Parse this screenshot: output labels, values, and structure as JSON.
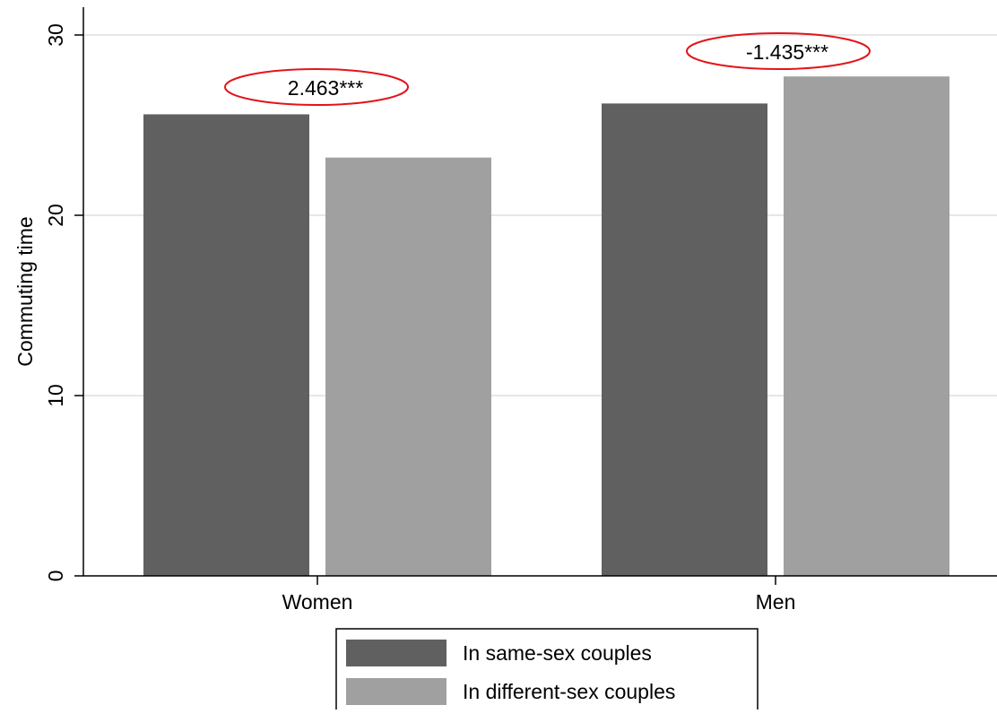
{
  "chart_data": {
    "type": "bar",
    "title": "",
    "xlabel": "",
    "ylabel": "Commuting time",
    "ylim": [
      0,
      31.5
    ],
    "yticks": [
      0,
      10,
      20,
      30
    ],
    "grid": true,
    "legend_position": "bottom",
    "categories": [
      "Women",
      "Men"
    ],
    "series": [
      {
        "name": "In same-sex couples",
        "color": "#606060",
        "values": [
          25.6,
          26.2
        ]
      },
      {
        "name": "In different-sex couples",
        "color": "#a0a0a0",
        "values": [
          23.2,
          27.7
        ]
      }
    ],
    "annotations": [
      {
        "category": "Women",
        "text": "2.463***",
        "ellipse_color": "#e3141b"
      },
      {
        "category": "Men",
        "text": "-1.435***",
        "ellipse_color": "#e3141b"
      }
    ]
  }
}
